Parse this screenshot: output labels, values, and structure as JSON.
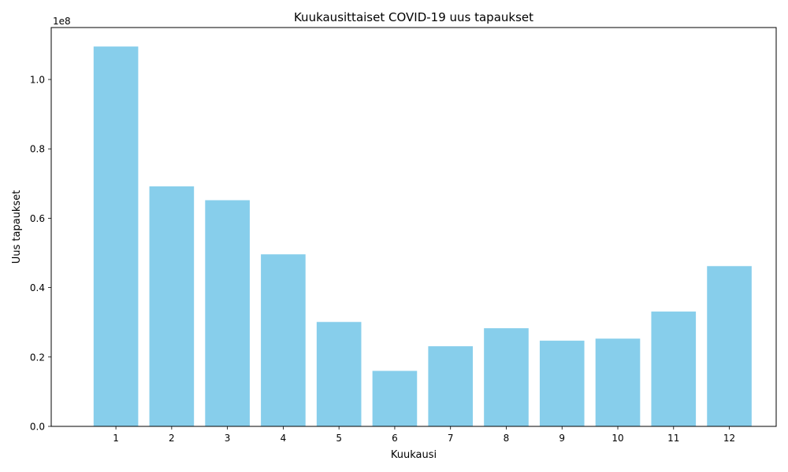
{
  "chart_data": {
    "type": "bar",
    "title": "Kuukausittaiset COVID-19 uus tapaukset",
    "xlabel": "Kuukausi",
    "ylabel": "Uus tapaukset",
    "y_multiplier_label": "1e8",
    "categories": [
      "1",
      "2",
      "3",
      "4",
      "5",
      "6",
      "7",
      "8",
      "9",
      "10",
      "11",
      "12"
    ],
    "values": [
      109500000,
      69200000,
      65200000,
      49600000,
      30100000,
      16000000,
      23100000,
      28300000,
      24700000,
      25300000,
      33100000,
      46200000
    ],
    "ylim": [
      0,
      114975000
    ],
    "yticks": [
      0,
      20000000,
      40000000,
      60000000,
      80000000,
      100000000
    ],
    "ytick_labels": [
      "0.0",
      "0.2",
      "0.4",
      "0.6",
      "0.8",
      "1.0"
    ],
    "bar_color": "#87ceeb",
    "grid": false,
    "legend": "none"
  }
}
